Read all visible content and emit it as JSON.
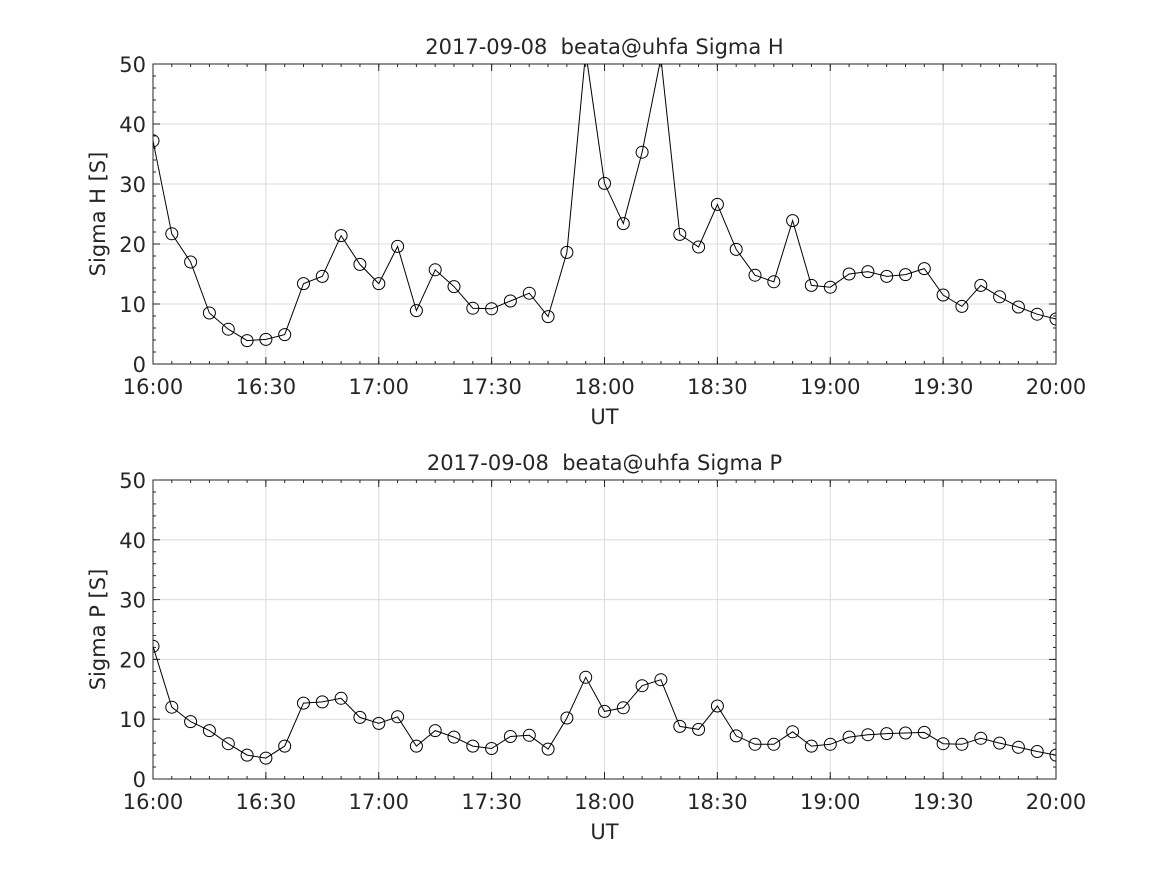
{
  "colors": {
    "line": "#000000",
    "grid": "#dcdcdc",
    "axis": "#262626",
    "background": "#ffffff"
  },
  "chart_data": [
    {
      "type": "line",
      "title": "2017-09-08  beata@uhfa Sigma H",
      "xlabel": "UT",
      "ylabel": "Sigma H [S]",
      "xlim": [
        "16:00",
        "20:00"
      ],
      "ylim": [
        0,
        50
      ],
      "grid": true,
      "marker": "open-circle",
      "x_ticks": [
        "16:00",
        "16:30",
        "17:00",
        "17:30",
        "18:00",
        "18:30",
        "19:00",
        "19:30",
        "20:00"
      ],
      "y_ticks": [
        0,
        10,
        20,
        30,
        40,
        50
      ],
      "x": [
        "16:00",
        "16:05",
        "16:10",
        "16:15",
        "16:20",
        "16:25",
        "16:30",
        "16:35",
        "16:40",
        "16:45",
        "16:50",
        "16:55",
        "17:00",
        "17:05",
        "17:10",
        "17:15",
        "17:20",
        "17:25",
        "17:30",
        "17:35",
        "17:40",
        "17:45",
        "17:50",
        "17:55",
        "18:00",
        "18:05",
        "18:10",
        "18:15",
        "18:20",
        "18:25",
        "18:30",
        "18:35",
        "18:40",
        "18:45",
        "18:50",
        "18:55",
        "19:00",
        "19:05",
        "19:10",
        "19:15",
        "19:20",
        "19:25",
        "19:30",
        "19:35",
        "19:40",
        "19:45",
        "19:50",
        "19:55",
        "20:00"
      ],
      "series": [
        {
          "values": [
            37.2,
            21.7,
            17.0,
            8.5,
            5.8,
            3.9,
            4.1,
            4.9,
            13.4,
            14.6,
            21.4,
            16.6,
            13.4,
            19.6,
            8.9,
            15.7,
            12.9,
            9.3,
            9.2,
            10.5,
            11.8,
            7.9,
            18.6,
            52.0,
            30.1,
            23.4,
            35.3,
            51.0,
            21.6,
            19.5,
            26.6,
            19.1,
            14.8,
            13.7,
            23.9,
            13.1,
            12.8,
            15.0,
            15.4,
            14.6,
            14.9,
            15.9,
            11.5,
            9.6,
            13.1,
            11.2,
            9.5,
            8.3,
            7.5
          ]
        }
      ]
    },
    {
      "type": "line",
      "title": "2017-09-08  beata@uhfa Sigma P",
      "xlabel": "UT",
      "ylabel": "Sigma P [S]",
      "xlim": [
        "16:00",
        "20:00"
      ],
      "ylim": [
        0,
        50
      ],
      "grid": true,
      "marker": "open-circle",
      "x_ticks": [
        "16:00",
        "16:30",
        "17:00",
        "17:30",
        "18:00",
        "18:30",
        "19:00",
        "19:30",
        "20:00"
      ],
      "y_ticks": [
        0,
        10,
        20,
        30,
        40,
        50
      ],
      "x": [
        "16:00",
        "16:05",
        "16:10",
        "16:15",
        "16:20",
        "16:25",
        "16:30",
        "16:35",
        "16:40",
        "16:45",
        "16:50",
        "16:55",
        "17:00",
        "17:05",
        "17:10",
        "17:15",
        "17:20",
        "17:25",
        "17:30",
        "17:35",
        "17:40",
        "17:45",
        "17:50",
        "17:55",
        "18:00",
        "18:05",
        "18:10",
        "18:15",
        "18:20",
        "18:25",
        "18:30",
        "18:35",
        "18:40",
        "18:45",
        "18:50",
        "18:55",
        "19:00",
        "19:05",
        "19:10",
        "19:15",
        "19:20",
        "19:25",
        "19:30",
        "19:35",
        "19:40",
        "19:45",
        "19:50",
        "19:55",
        "20:00"
      ],
      "series": [
        {
          "values": [
            22.2,
            12.0,
            9.6,
            8.1,
            5.9,
            4.0,
            3.5,
            5.5,
            12.7,
            12.9,
            13.5,
            10.3,
            9.3,
            10.4,
            5.5,
            8.1,
            7.0,
            5.5,
            5.1,
            7.1,
            7.3,
            5.0,
            10.2,
            17.0,
            11.3,
            11.9,
            15.6,
            16.6,
            8.8,
            8.3,
            12.2,
            7.2,
            5.8,
            5.8,
            7.9,
            5.5,
            5.8,
            7.0,
            7.4,
            7.6,
            7.7,
            7.8,
            5.9,
            5.8,
            6.8,
            6.0,
            5.3,
            4.6,
            4.0
          ]
        }
      ]
    }
  ]
}
